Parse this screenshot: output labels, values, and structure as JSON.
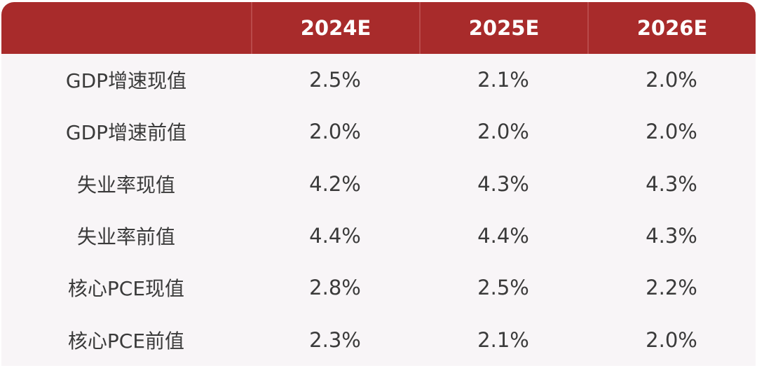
{
  "table": {
    "headers": [
      "",
      "2024E",
      "2025E",
      "2026E"
    ],
    "rows": [
      {
        "label": "GDP增速现值",
        "values": [
          "2.5%",
          "2.1%",
          "2.0%"
        ]
      },
      {
        "label": "GDP增速前值",
        "values": [
          "2.0%",
          "2.0%",
          "2.0%"
        ]
      },
      {
        "label": "失业率现值",
        "values": [
          "4.2%",
          "4.3%",
          "4.3%"
        ]
      },
      {
        "label": "失业率前值",
        "values": [
          "4.4%",
          "4.4%",
          "4.3%"
        ]
      },
      {
        "label": "核心PCE现值",
        "values": [
          "2.8%",
          "2.5%",
          "2.2%"
        ]
      },
      {
        "label": "核心PCE前值",
        "values": [
          "2.3%",
          "2.1%",
          "2.0%"
        ]
      }
    ]
  },
  "colors": {
    "header_bg": "#a82b2b",
    "body_bg": "#f8f5f7",
    "header_text": "#ffffff",
    "body_text": "#3a3a3a"
  }
}
